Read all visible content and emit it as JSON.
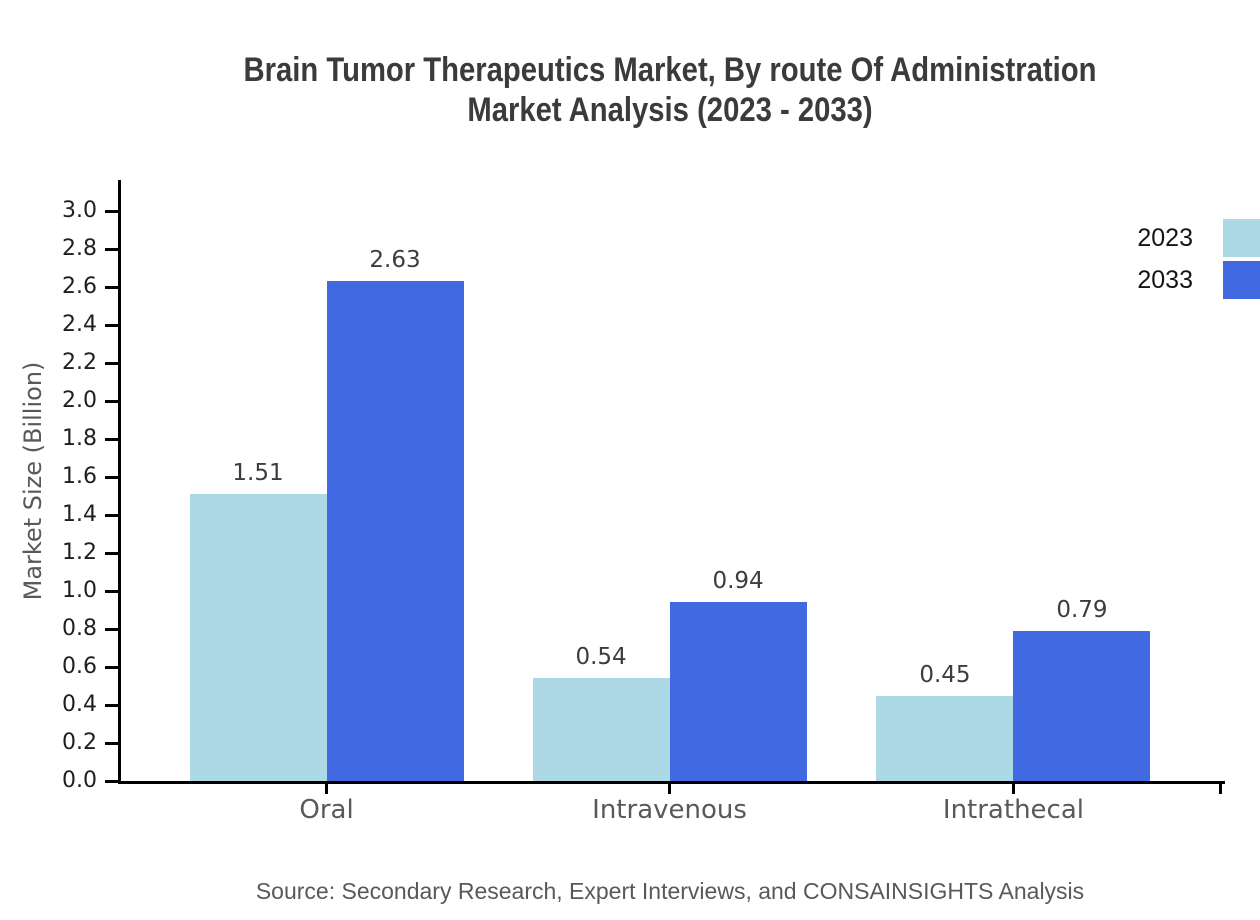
{
  "chart_data": {
    "type": "bar",
    "title": "Brain Tumor Therapeutics Market, By route Of Administration Market Analysis (2023 - 2033)",
    "title_lines": [
      "Brain Tumor Therapeutics Market, By route Of Administration",
      "Market Analysis (2023 - 2033)"
    ],
    "categories": [
      "Oral",
      "Intravenous",
      "Intrathecal"
    ],
    "series": [
      {
        "name": "2023",
        "color": "#ADD8E6",
        "values": [
          1.51,
          0.54,
          0.45
        ]
      },
      {
        "name": "2033",
        "color": "#4169E1",
        "values": [
          2.63,
          0.94,
          0.79
        ]
      }
    ],
    "xlabel": "",
    "ylabel": "Market Size (Billion)",
    "ylim": [
      0.0,
      3.0
    ],
    "ytick_step": 0.2,
    "ytick_labels": [
      "0.0",
      "0.2",
      "0.4",
      "0.6",
      "0.8",
      "1.0",
      "1.2",
      "1.4",
      "1.6",
      "1.8",
      "2.0",
      "2.2",
      "2.4",
      "2.6",
      "2.8",
      "3.0"
    ],
    "grid": false,
    "legend_position": "top-right",
    "value_labels": [
      "1.51",
      "2.63",
      "0.54",
      "0.94",
      "0.45",
      "0.79"
    ]
  },
  "source": "Source: Secondary Research, Expert Interviews, and CONSAINSIGHTS Analysis",
  "colors": {
    "series_2023": "#ADD8E6",
    "series_2033": "#4169E1",
    "axis": "#000000",
    "tick_label": "#1f1f1f",
    "category_label": "#595959",
    "title_text": "#3b3b3b",
    "value_label": "#3d3d3d",
    "source_text": "#595959",
    "background": "#ffffff"
  }
}
